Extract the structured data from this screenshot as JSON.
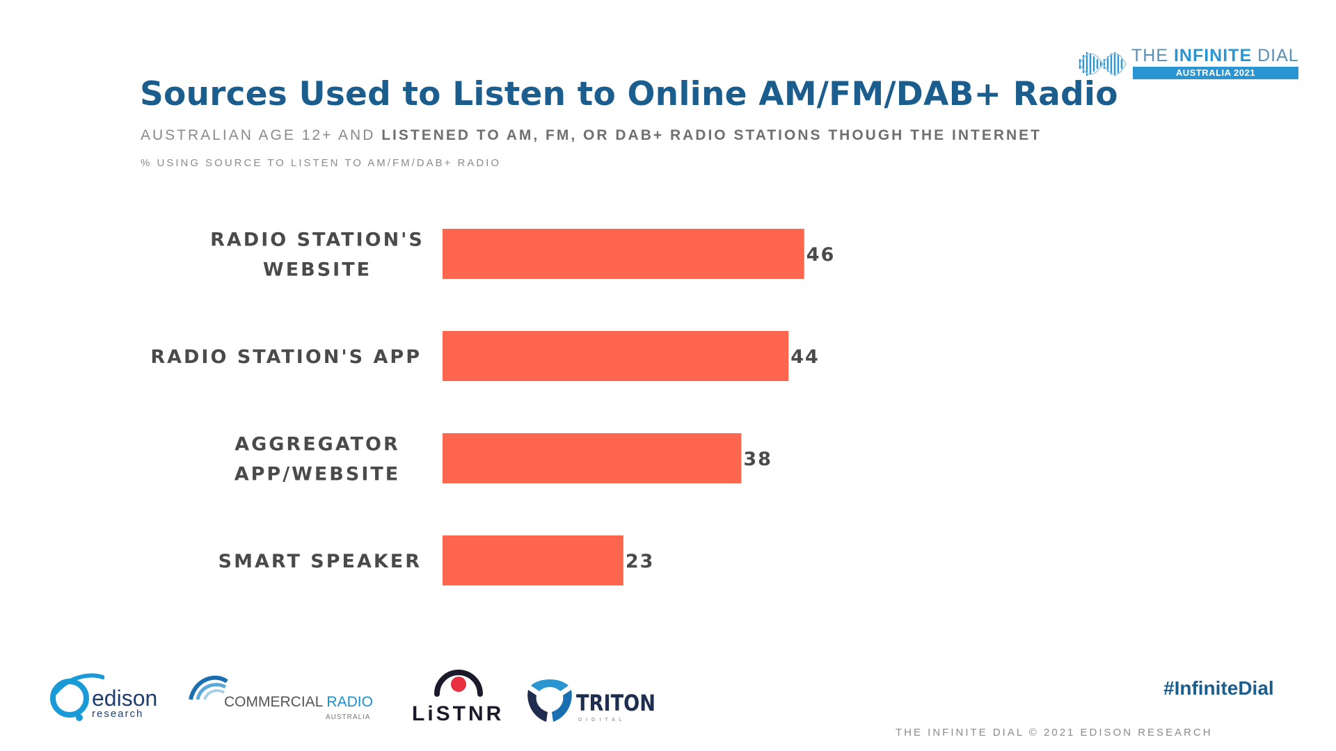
{
  "header": {
    "title": "Sources Used to Listen to Online AM/FM/DAB+ Radio",
    "subtitle_prefix": "AUSTRALIAN AGE 12+ AND ",
    "subtitle_bold": "LISTENED TO AM, FM, OR DAB+ RADIO STATIONS THOUGH THE INTERNET",
    "note": "% USING SOURCE TO LISTEN TO AM/FM/DAB+ RADIO"
  },
  "brand": {
    "the": "THE ",
    "infinite": "INFINITE",
    "dial": " DIAL",
    "edition": "AUSTRALIA 2021"
  },
  "chart_data": {
    "type": "bar",
    "orientation": "horizontal",
    "title": "Sources Used to Listen to Online AM/FM/DAB+ Radio",
    "categories": [
      [
        "RADIO STATION'S",
        "WEBSITE"
      ],
      [
        "RADIO STATION'S APP"
      ],
      [
        "AGGREGATOR",
        "APP/WEBSITE"
      ],
      [
        "SMART SPEAKER"
      ]
    ],
    "values": [
      46,
      44,
      38,
      23
    ],
    "unit": "%",
    "xlim": [
      0,
      100
    ],
    "bar_color": "#ff6650",
    "grid": false
  },
  "footer": {
    "hashtag": "#InfiniteDial",
    "copyright": "THE INFINITE DIAL  © 2021 EDISON RESEARCH"
  },
  "logos": {
    "edison_word": "edison",
    "edison_sub": "research",
    "cr_commercial": "COMMERCIAL",
    "cr_radio": "RADIO",
    "cr_sub": "AUSTRALIA",
    "listnr": "LiSTNR",
    "triton": "TRITON",
    "triton_sub": "DIGITAL"
  },
  "colors": {
    "title": "#1b5d8c",
    "accent": "#2a95d0",
    "bar": "#ff6650",
    "text": "#4a4a4a"
  }
}
